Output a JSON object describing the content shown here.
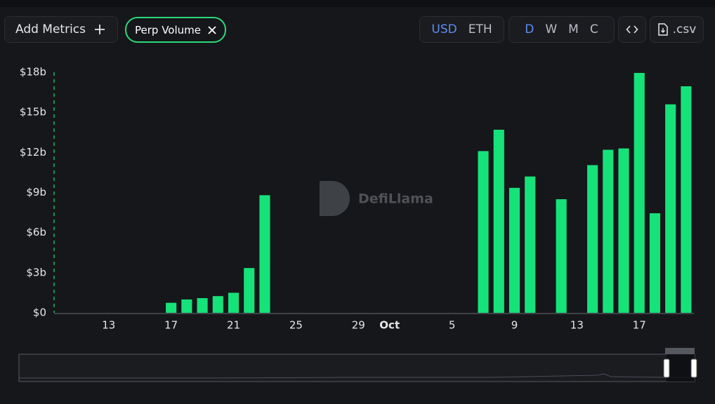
{
  "toolbar": {
    "add_metrics": "Add Metrics",
    "metric": "Perp Volume",
    "currencies": [
      "USD",
      "ETH"
    ],
    "periods": [
      "D",
      "W",
      "M",
      "C"
    ],
    "csv": ".csv"
  },
  "watermark": "DefiLlama",
  "chart_data": {
    "type": "bar",
    "color": "#16e27a",
    "categories": [
      null,
      null,
      null,
      "13",
      null,
      null,
      null,
      "17",
      null,
      null,
      null,
      "21",
      null,
      null,
      null,
      "25",
      null,
      null,
      null,
      "29",
      null,
      "Oct",
      null,
      null,
      null,
      "5",
      null,
      null,
      null,
      "9",
      null,
      null,
      null,
      "13",
      null,
      null,
      null,
      "17",
      null,
      null,
      null
    ],
    "values": [
      null,
      null,
      null,
      null,
      null,
      null,
      null,
      0.75,
      1.0,
      1.1,
      1.25,
      1.5,
      3.35,
      8.8,
      null,
      null,
      null,
      null,
      null,
      null,
      null,
      null,
      null,
      null,
      null,
      null,
      null,
      12.1,
      13.7,
      9.35,
      10.2,
      null,
      8.5,
      null,
      11.05,
      12.2,
      12.3,
      17.95,
      7.45,
      15.6,
      16.95
    ],
    "ylim": [
      0,
      18
    ],
    "yticks": [
      {
        "value": 0,
        "label": "$0"
      },
      {
        "value": 3,
        "label": "$3b"
      },
      {
        "value": 6,
        "label": "$6b"
      },
      {
        "value": 9,
        "label": "$9b"
      },
      {
        "value": 12,
        "label": "$12b"
      },
      {
        "value": 15,
        "label": "$15b"
      },
      {
        "value": 18,
        "label": "$18b"
      }
    ],
    "grid": false
  }
}
